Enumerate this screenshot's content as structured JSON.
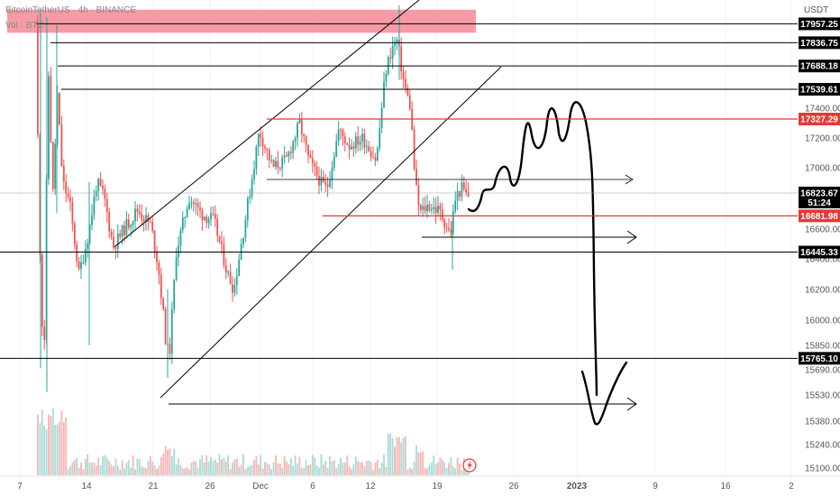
{
  "chart_data": {
    "type": "candlestick",
    "legend": {
      "symbol_line": "BitcoinTetherUS · 4h · BINANCE",
      "volume_label": "Vol · BTC"
    },
    "currency_label": "USDT",
    "x_tick_labels": [
      "7",
      "14",
      "21",
      "26",
      "Dec",
      "6",
      "12",
      "19",
      "26",
      "2023",
      "9",
      "16",
      "2"
    ],
    "y_tick_labels": [
      "17400.00",
      "17200.00",
      "17000.00",
      "16600.00",
      "16400.00",
      "16200.00",
      "16000.00",
      "15850.00",
      "15690.00",
      "15530.00",
      "15380.00",
      "15240.00",
      "15100.00"
    ],
    "y_tick_values": [
      17400,
      17200,
      17000,
      16600,
      16400,
      16200,
      16000,
      15850,
      15690,
      15530,
      15380,
      15240,
      15100
    ],
    "current_price": "16823.67",
    "countdown": "51:24",
    "horizontal_levels": [
      {
        "price": 17957.25,
        "label": "17957.25",
        "color": "#000000"
      },
      {
        "price": 17836.75,
        "label": "17836.75",
        "color": "#000000"
      },
      {
        "price": 17688.18,
        "label": "17688.18",
        "color": "#000000"
      },
      {
        "price": 17539.61,
        "label": "17539.61",
        "color": "#000000"
      },
      {
        "price": 17327.29,
        "label": "17327.29",
        "color": "#e53935"
      },
      {
        "price": 16681.98,
        "label": "16681.98",
        "color": "#e53935"
      },
      {
        "price": 16445.33,
        "label": "16445.33",
        "color": "#000000"
      },
      {
        "price": 15765.1,
        "label": "15765.10",
        "color": "#000000"
      }
    ],
    "resistance_zone": {
      "top_price": 18050,
      "bottom_price": 17900,
      "color": "#f48a95"
    },
    "candles": {
      "up_color": "#26a69a",
      "down_color": "#ef5350",
      "projection_color": "#000000"
    }
  }
}
